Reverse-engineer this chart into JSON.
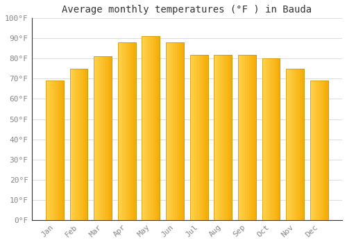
{
  "title": "Average monthly temperatures (°F ) in Bauda",
  "months": [
    "Jan",
    "Feb",
    "Mar",
    "Apr",
    "May",
    "Jun",
    "Jul",
    "Aug",
    "Sep",
    "Oct",
    "Nov",
    "Dec"
  ],
  "values": [
    69,
    75,
    81,
    88,
    91,
    88,
    82,
    82,
    82,
    80,
    75,
    69
  ],
  "bar_color_left": "#FFD04A",
  "bar_color_right": "#F5A800",
  "bar_edge_color": "#C8960A",
  "ylim": [
    0,
    100
  ],
  "ytick_step": 10,
  "background_color": "#FFFFFF",
  "grid_color": "#DDDDDD",
  "title_fontsize": 10,
  "tick_fontsize": 8,
  "font_family": "monospace",
  "axis_color": "#888888",
  "bar_width": 0.75
}
